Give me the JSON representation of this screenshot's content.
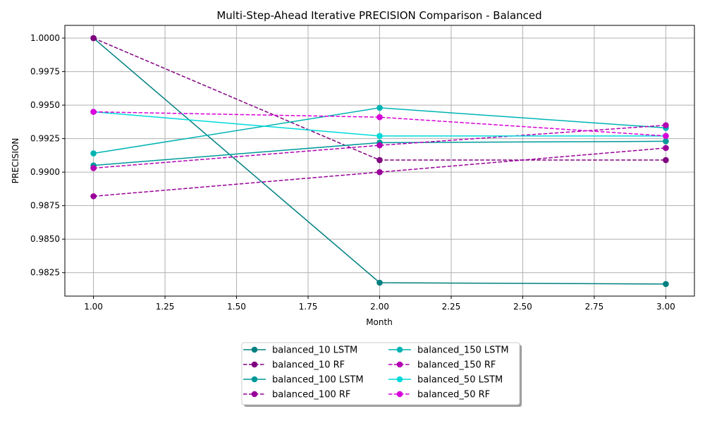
{
  "chart_data": {
    "type": "line",
    "title": "Multi-Step-Ahead Iterative PRECISION Comparison - Balanced",
    "xlabel": "Month",
    "ylabel": "PRECISION",
    "x": [
      1,
      2,
      3
    ],
    "xlim": [
      0.9,
      3.1
    ],
    "ylim": [
      0.98075,
      1.00095
    ],
    "xticks": [
      "1.00",
      "1.25",
      "1.50",
      "1.75",
      "2.00",
      "2.25",
      "2.50",
      "2.75",
      "3.00"
    ],
    "yticks": [
      "0.9825",
      "0.9850",
      "0.9875",
      "0.9900",
      "0.9925",
      "0.9950",
      "0.9975",
      "1.0000"
    ],
    "grid": true,
    "legend_position": "below plot, 2 columns, centered",
    "series": [
      {
        "name": "balanced_10 LSTM",
        "values": [
          1.0,
          0.98175,
          0.98165
        ],
        "color": "#008080",
        "dash": "solid"
      },
      {
        "name": "balanced_10 RF",
        "values": [
          1.0,
          0.9909,
          0.9909
        ],
        "color": "#800080",
        "dash": "dashed"
      },
      {
        "name": "balanced_100 LSTM",
        "values": [
          0.9905,
          0.9922,
          0.9923
        ],
        "color": "#009999",
        "dash": "solid"
      },
      {
        "name": "balanced_100 RF",
        "values": [
          0.9882,
          0.99,
          0.9918
        ],
        "color": "#990099",
        "dash": "dashed"
      },
      {
        "name": "balanced_150 LSTM",
        "values": [
          0.9914,
          0.9948,
          0.9933
        ],
        "color": "#00B3B3",
        "dash": "solid"
      },
      {
        "name": "balanced_150 RF",
        "values": [
          0.9903,
          0.992,
          0.9935
        ],
        "color": "#B300B3",
        "dash": "dashed"
      },
      {
        "name": "balanced_50 LSTM",
        "values": [
          0.9945,
          0.9927,
          0.9927
        ],
        "color": "#00D9D9",
        "dash": "solid"
      },
      {
        "name": "balanced_50 RF",
        "values": [
          0.9945,
          0.9941,
          0.9927
        ],
        "color": "#D900D9",
        "dash": "dashed"
      }
    ]
  }
}
